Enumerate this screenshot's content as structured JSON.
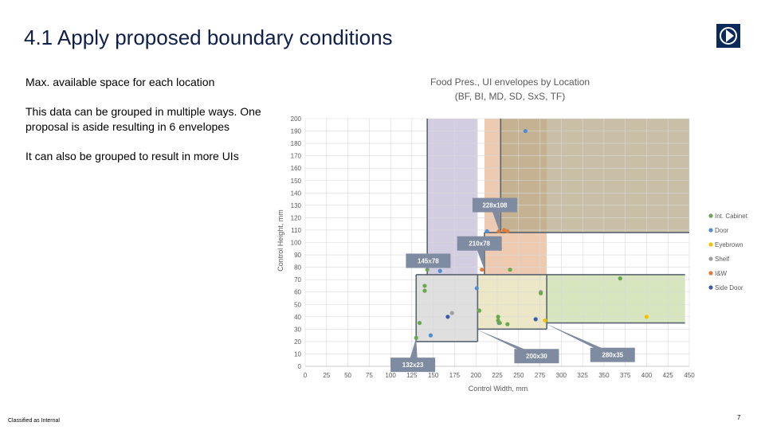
{
  "slide": {
    "title": "4.1 Apply proposed boundary conditions",
    "paragraphs": [
      "Max. available space for each location",
      "This data can be grouped in multiple ways. One proposal is aside resulting in 6 envelopes",
      "It can also be grouped to result in more UIs"
    ],
    "footer": "Classified as Internal",
    "page_number": "7"
  },
  "colors": {
    "title": "#0f1f4b",
    "logo": "#0b2a5b",
    "callout": "#7f8ba0",
    "envelope_border": "#5a6470"
  },
  "chart_data": {
    "type": "scatter",
    "title_lines": [
      "Food Pres., UI envelopes by Location",
      "(BF, BI, MD, SD, SxS, TF)"
    ],
    "xlabel": "Control Width, mm",
    "ylabel": "Control Height, mm",
    "xlim": [
      0,
      450
    ],
    "ylim": [
      0,
      200
    ],
    "xticks": [
      0,
      25,
      50,
      75,
      100,
      125,
      150,
      175,
      200,
      225,
      250,
      275,
      300,
      325,
      350,
      375,
      400,
      425,
      450
    ],
    "yticks": [
      0,
      10,
      20,
      30,
      40,
      50,
      60,
      70,
      80,
      90,
      100,
      110,
      120,
      130,
      140,
      150,
      160,
      170,
      180,
      190,
      200
    ],
    "grid": true,
    "legend_position": "right",
    "series": [
      {
        "name": "Side Door",
        "color": "#3a5ca8",
        "points": [
          [
            167,
            40
          ],
          [
            270,
            38
          ]
        ]
      },
      {
        "name": "I&W",
        "color": "#e07b39",
        "points": [
          [
            207,
            78
          ],
          [
            227,
            109
          ],
          [
            233,
            110
          ],
          [
            237,
            109
          ]
        ]
      },
      {
        "name": "Shelf",
        "color": "#a0a0a0",
        "points": [
          [
            172,
            43
          ],
          [
            276,
            60
          ]
        ]
      },
      {
        "name": "Eyebrown",
        "color": "#f2c400",
        "points": [
          [
            281,
            37
          ],
          [
            400,
            40
          ]
        ]
      },
      {
        "name": "Door",
        "color": "#4f8fd0",
        "points": [
          [
            148,
            85
          ],
          [
            158,
            77
          ],
          [
            147,
            25
          ],
          [
            201,
            63
          ],
          [
            213,
            109
          ],
          [
            215,
            97
          ],
          [
            228,
            95
          ],
          [
            258,
            190
          ],
          [
            227,
            35
          ]
        ]
      },
      {
        "name": "Int. Cabinet",
        "color": "#6aa84f",
        "points": [
          [
            130,
            23
          ],
          [
            134,
            35
          ],
          [
            140,
            65
          ],
          [
            140,
            61
          ],
          [
            143,
            81
          ],
          [
            143,
            78
          ],
          [
            204,
            45
          ],
          [
            226,
            40
          ],
          [
            226,
            37
          ],
          [
            228,
            35
          ],
          [
            237,
            34
          ],
          [
            240,
            78
          ],
          [
            276,
            59
          ],
          [
            369,
            71
          ]
        ]
      }
    ],
    "envelopes": [
      {
        "label": "132x23",
        "x": [
          130,
          202
        ],
        "y": [
          20,
          74
        ],
        "fill": "#d4d4d4",
        "callout_anchor": [
          130,
          23
        ],
        "callout_pos": [
          100,
          7
        ]
      },
      {
        "label": "145x78",
        "x": [
          143,
          202
        ],
        "y": [
          74,
          200
        ],
        "fill": "#c4bcd8",
        "callout_anchor": [
          143,
          78
        ],
        "callout_pos": [
          118,
          91
        ]
      },
      {
        "label": "200x30",
        "x": [
          202,
          283
        ],
        "y": [
          30,
          74
        ],
        "fill": "#e6e0b4",
        "callout_anchor": [
          200,
          30
        ],
        "callout_pos": [
          245,
          14
        ]
      },
      {
        "label": "210x78",
        "x": [
          210,
          283
        ],
        "y": [
          74,
          200
        ],
        "fill": "#e7b896",
        "callout_anchor": [
          210,
          78
        ],
        "callout_pos": [
          178,
          105
        ]
      },
      {
        "label": "228x108",
        "x": [
          229,
          450
        ],
        "y": [
          108,
          200
        ],
        "fill": "#b5aa88",
        "callout_anchor": [
          228,
          108
        ],
        "callout_pos": [
          196,
          136
        ]
      },
      {
        "label": "280x35",
        "x": [
          283,
          445
        ],
        "y": [
          35,
          74
        ],
        "fill": "#c9dda9",
        "callout_anchor": [
          280,
          35
        ],
        "callout_pos": [
          334,
          15
        ]
      }
    ]
  }
}
